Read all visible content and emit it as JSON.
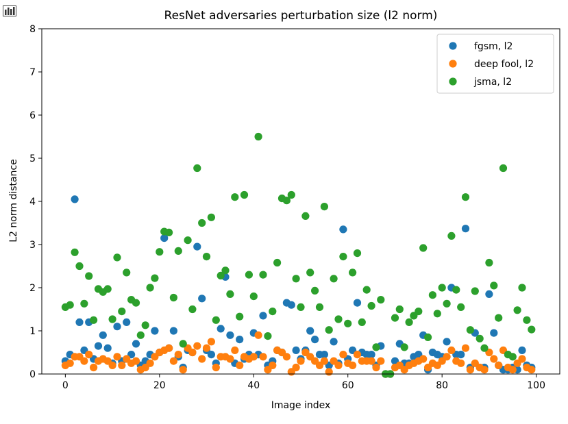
{
  "toolbar": {
    "icon": "bar-chart-icon"
  },
  "chart_data": {
    "type": "scatter",
    "title": "ResNet adversaries perturbation size (l2 norm)",
    "xlabel": "Image index",
    "ylabel": "L2 norm distance",
    "xlim": [
      -5,
      105
    ],
    "ylim": [
      0,
      8
    ],
    "xticks": [
      0,
      20,
      40,
      60,
      80,
      100
    ],
    "yticks": [
      0,
      1,
      2,
      3,
      4,
      5,
      6,
      7,
      8
    ],
    "grid": false,
    "legend_position": "top-right",
    "series": [
      {
        "name": "fgsm, l2",
        "color": "#1f77b4",
        "x": [
          0,
          1,
          2,
          3,
          4,
          5,
          6,
          7,
          8,
          9,
          10,
          11,
          12,
          13,
          14,
          15,
          16,
          17,
          18,
          19,
          20,
          21,
          22,
          23,
          24,
          25,
          26,
          27,
          28,
          29,
          30,
          31,
          32,
          33,
          34,
          35,
          36,
          37,
          38,
          39,
          40,
          41,
          42,
          43,
          44,
          45,
          46,
          47,
          48,
          49,
          50,
          51,
          52,
          53,
          54,
          55,
          56,
          57,
          58,
          59,
          60,
          61,
          62,
          63,
          64,
          65,
          66,
          67,
          68,
          69,
          70,
          71,
          72,
          73,
          74,
          75,
          76,
          77,
          78,
          79,
          80,
          81,
          82,
          83,
          84,
          85,
          86,
          87,
          88,
          89,
          90,
          91,
          92,
          93,
          94,
          95,
          96,
          97,
          98,
          99
        ],
        "y": [
          0.3,
          0.45,
          4.05,
          1.2,
          0.55,
          1.2,
          0.35,
          0.65,
          0.9,
          0.6,
          0.25,
          1.1,
          0.3,
          1.2,
          0.45,
          0.7,
          0.2,
          0.3,
          0.45,
          1.0,
          0.5,
          3.15,
          0.6,
          1.0,
          0.4,
          0.15,
          0.55,
          0.5,
          2.95,
          1.75,
          0.55,
          0.45,
          0.25,
          1.05,
          2.25,
          0.9,
          0.25,
          0.8,
          0.35,
          0.45,
          0.95,
          0.45,
          1.35,
          0.2,
          0.3,
          0.55,
          0.5,
          1.65,
          1.6,
          0.55,
          0.35,
          0.55,
          1.0,
          0.8,
          0.45,
          0.45,
          0.2,
          0.75,
          0.25,
          3.35,
          0.35,
          0.55,
          1.65,
          0.5,
          0.45,
          0.45,
          0.2,
          0.65,
          0.0,
          0.0,
          0.3,
          0.7,
          0.25,
          0.25,
          0.4,
          0.45,
          0.9,
          0.1,
          0.5,
          0.45,
          0.4,
          0.75,
          2.0,
          0.45,
          0.45,
          3.37,
          0.15,
          0.95,
          0.15,
          0.15,
          1.85,
          0.95,
          0.2,
          0.1,
          0.1,
          0.15,
          0.1,
          0.55,
          0.2,
          0.15
        ]
      },
      {
        "name": "deep fool, l2",
        "color": "#ff7f0e",
        "x": [
          0,
          1,
          2,
          3,
          4,
          5,
          6,
          7,
          8,
          9,
          10,
          11,
          12,
          13,
          14,
          15,
          16,
          17,
          18,
          19,
          20,
          21,
          22,
          23,
          24,
          25,
          26,
          27,
          28,
          29,
          30,
          31,
          32,
          33,
          34,
          35,
          36,
          37,
          38,
          39,
          40,
          41,
          42,
          43,
          44,
          45,
          46,
          47,
          48,
          49,
          50,
          51,
          52,
          53,
          54,
          55,
          56,
          57,
          58,
          59,
          60,
          61,
          62,
          63,
          64,
          65,
          66,
          67,
          68,
          69,
          70,
          71,
          72,
          73,
          74,
          75,
          76,
          77,
          78,
          79,
          80,
          81,
          82,
          83,
          84,
          85,
          86,
          87,
          88,
          89,
          90,
          91,
          92,
          93,
          94,
          95,
          96,
          97,
          98,
          99
        ],
        "y": [
          0.2,
          0.25,
          0.4,
          0.4,
          0.3,
          0.45,
          0.15,
          0.3,
          0.35,
          0.3,
          0.2,
          0.4,
          0.2,
          0.35,
          0.25,
          0.3,
          0.1,
          0.15,
          0.25,
          0.4,
          0.5,
          0.55,
          0.6,
          0.3,
          0.45,
          0.1,
          0.6,
          0.5,
          0.65,
          0.35,
          0.6,
          0.75,
          0.15,
          0.4,
          0.4,
          0.35,
          0.55,
          0.2,
          0.4,
          0.35,
          0.4,
          0.9,
          0.4,
          0.1,
          0.2,
          0.55,
          0.5,
          0.4,
          0.05,
          0.15,
          0.3,
          0.5,
          0.4,
          0.3,
          0.2,
          0.3,
          0.05,
          0.3,
          0.2,
          0.45,
          0.25,
          0.2,
          0.45,
          0.3,
          0.3,
          0.3,
          0.15,
          0.3,
          0.0,
          0.0,
          0.15,
          0.2,
          0.1,
          0.2,
          0.25,
          0.3,
          0.35,
          0.15,
          0.25,
          0.2,
          0.3,
          0.4,
          0.55,
          0.3,
          0.25,
          0.6,
          0.1,
          0.25,
          0.15,
          0.1,
          0.5,
          0.35,
          0.2,
          0.55,
          0.15,
          0.1,
          0.25,
          0.35,
          0.15,
          0.1
        ]
      },
      {
        "name": "jsma, l2",
        "color": "#2ca02c",
        "x": [
          0,
          1,
          2,
          3,
          4,
          5,
          6,
          7,
          8,
          9,
          10,
          11,
          12,
          13,
          14,
          15,
          16,
          17,
          18,
          19,
          20,
          21,
          22,
          23,
          24,
          25,
          26,
          27,
          28,
          29,
          30,
          31,
          32,
          33,
          34,
          35,
          36,
          37,
          38,
          39,
          40,
          41,
          42,
          43,
          44,
          45,
          46,
          47,
          48,
          49,
          50,
          51,
          52,
          53,
          54,
          55,
          56,
          57,
          58,
          59,
          60,
          61,
          62,
          63,
          64,
          65,
          66,
          67,
          68,
          69,
          70,
          71,
          72,
          73,
          74,
          75,
          76,
          77,
          78,
          79,
          80,
          81,
          82,
          83,
          84,
          85,
          86,
          87,
          88,
          89,
          90,
          91,
          92,
          93,
          94,
          95,
          96,
          97,
          98,
          99
        ],
        "y": [
          1.55,
          1.6,
          2.82,
          2.5,
          1.63,
          2.27,
          1.25,
          1.97,
          1.9,
          1.97,
          1.27,
          2.7,
          1.45,
          2.35,
          1.72,
          1.65,
          0.9,
          1.13,
          2.0,
          2.22,
          2.83,
          3.3,
          3.28,
          1.77,
          2.85,
          0.7,
          3.1,
          1.5,
          4.77,
          3.5,
          2.72,
          3.63,
          1.25,
          2.28,
          2.4,
          1.85,
          4.1,
          1.33,
          4.15,
          2.3,
          1.8,
          5.5,
          2.3,
          0.88,
          1.45,
          2.58,
          4.07,
          4.02,
          4.15,
          2.21,
          1.55,
          3.66,
          2.35,
          1.93,
          1.55,
          3.88,
          1.02,
          2.21,
          1.27,
          2.72,
          1.17,
          2.35,
          2.8,
          1.2,
          1.95,
          1.58,
          0.62,
          1.72,
          0.0,
          0.0,
          1.3,
          1.5,
          0.62,
          1.2,
          1.35,
          1.45,
          2.92,
          0.85,
          1.83,
          1.4,
          2.0,
          1.63,
          3.2,
          1.95,
          1.55,
          4.1,
          1.02,
          1.92,
          0.82,
          0.6,
          2.58,
          2.05,
          1.3,
          4.77,
          0.45,
          0.4,
          1.48,
          2.0,
          1.25,
          1.03
        ]
      }
    ]
  }
}
